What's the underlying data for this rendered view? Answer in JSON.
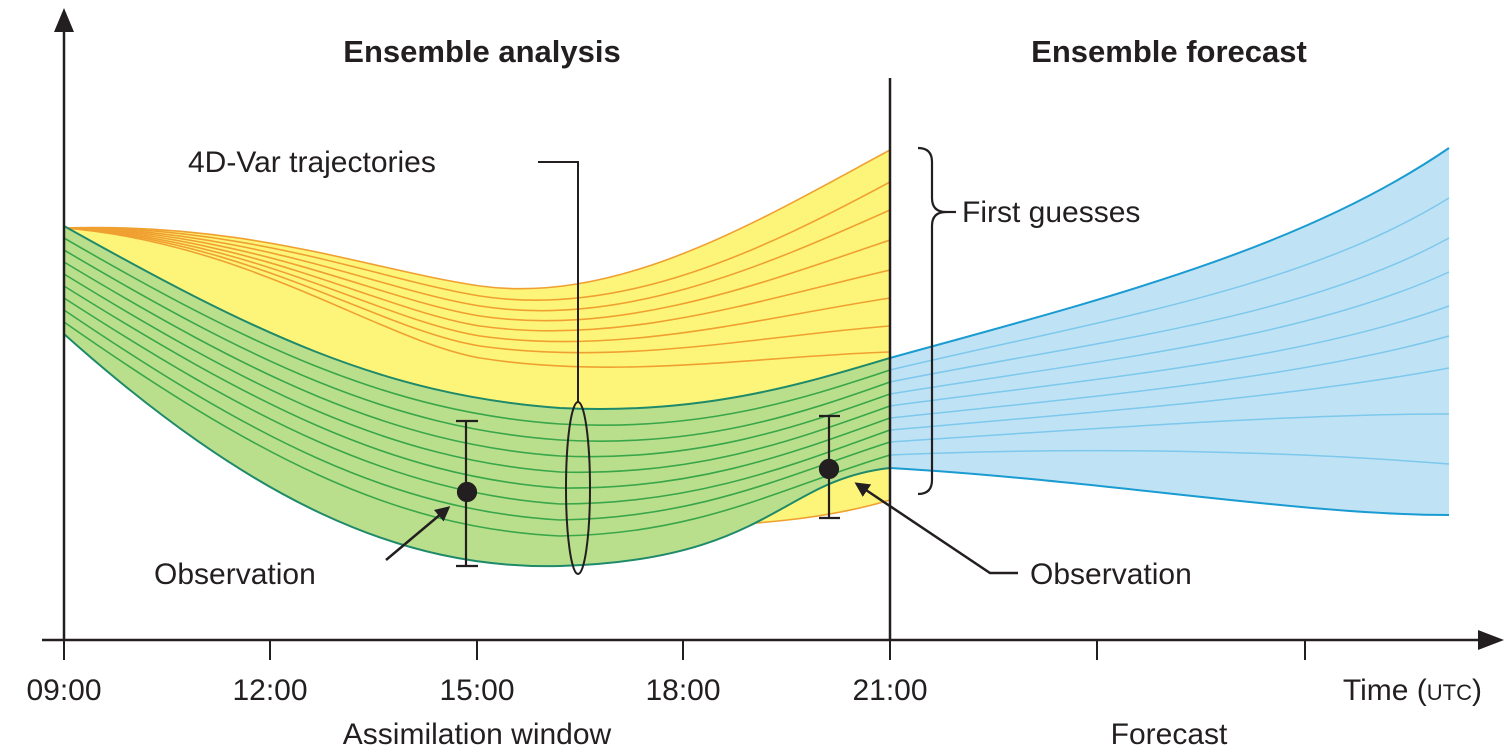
{
  "titles": {
    "analysis": "Ensemble analysis",
    "forecast": "Ensemble forecast"
  },
  "labels": {
    "trajectories": "4D-Var trajectories",
    "first_guesses": "First guesses",
    "observation_left": "Observation",
    "observation_right": "Observation"
  },
  "axis": {
    "x_ticks": [
      "09:00",
      "12:00",
      "15:00",
      "18:00",
      "21:00"
    ],
    "x_label_main": "Time (",
    "x_label_unit": "UTC",
    "x_label_close": ")",
    "window_label": "Assimilation window",
    "forecast_label": "Forecast"
  },
  "colors": {
    "first_guess_fill": "#fdf57a",
    "first_guess_line": "#f0a030",
    "analysis_fill": "#b9df8c",
    "analysis_line": "#3aa64a",
    "analysis_edge": "#1f8a6a",
    "forecast_fill": "#bfe3f5",
    "forecast_line": "#7dc8ec",
    "forecast_edge": "#1a9bd2",
    "ink": "#231f20"
  }
}
